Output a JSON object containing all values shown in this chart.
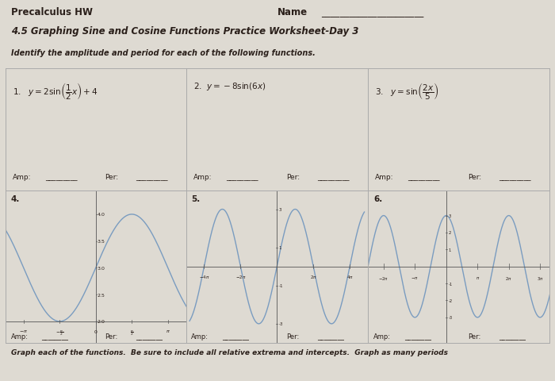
{
  "title1": "Precalculus HW",
  "title_name": "Name",
  "title2": "4.5 Graphing Sine and Cosine Functions Practice Worksheet-Day 3",
  "instruction": "Identify the amplitude and period for each of the following functions.",
  "instruction2": "Graph each of the functions.  Be sure to include all relative extrema and intercepts.  Graph as many periods",
  "eq1": "1.   $y=2\\sin\\!\\left(\\dfrac{1}{2}x\\right)+4$",
  "eq2": "2.  $y=-8\\sin(6x)$",
  "eq3": "3.   $y=\\sin\\!\\left(\\dfrac{2x}{5}\\right)$",
  "amp_label": "Amp:",
  "per_label": "Per:",
  "num4": "4.",
  "num5": "5.",
  "num6": "6.",
  "bg_color": "#dedad2",
  "line_color": "#7a9cc0",
  "axis_color": "#555555",
  "text_color": "#2a1f1a",
  "border_color": "#aaaaaa"
}
